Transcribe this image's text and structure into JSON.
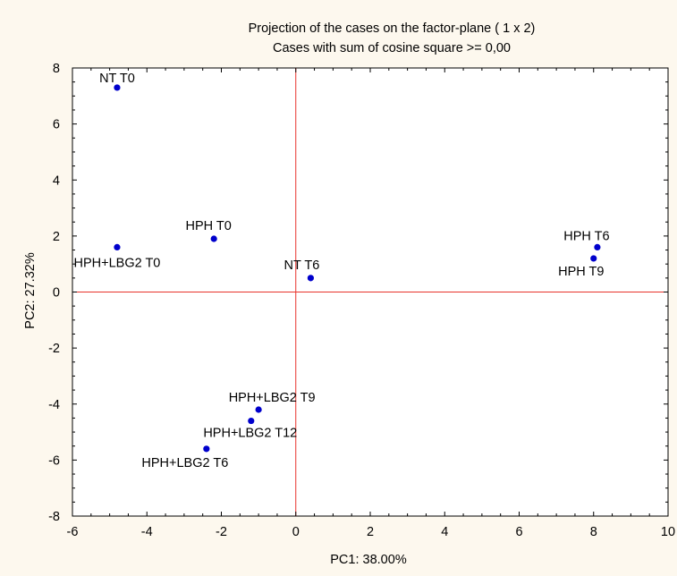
{
  "chart_data": {
    "type": "scatter",
    "title": "Projection of the cases on the factor-plane (  1 x   2)",
    "subtitle": "Cases with sum of cosine square >=  0,00",
    "xlabel": "PC1: 38.00%",
    "ylabel": "PC2: 27.32%",
    "xlim": [
      -6,
      10
    ],
    "ylim": [
      -8,
      8
    ],
    "xticks": [
      "-6",
      "-4",
      "-2",
      "0",
      "2",
      "4",
      "6",
      "8",
      "10"
    ],
    "yticks": [
      "-8",
      "-6",
      "-4",
      "-2",
      "0",
      "2",
      "4",
      "6",
      "8"
    ],
    "grid": false,
    "reference_lines": {
      "x": 0,
      "y": 0,
      "color": "#e8322b"
    },
    "point_color": "#0000cc",
    "points": [
      {
        "label": "NT T0",
        "x": -4.8,
        "y": 7.3
      },
      {
        "label": "HPH T0",
        "x": -2.2,
        "y": 1.9
      },
      {
        "label": "HPH+LBG2 T0",
        "x": -4.8,
        "y": 1.6
      },
      {
        "label": "NT T6",
        "x": 0.4,
        "y": 0.5
      },
      {
        "label": "HPH T6",
        "x": 8.1,
        "y": 1.6
      },
      {
        "label": "HPH T9",
        "x": 8.0,
        "y": 1.2
      },
      {
        "label": "HPH+LBG2 T9",
        "x": -1.0,
        "y": -4.2
      },
      {
        "label": "HPH+LBG2 T12",
        "x": -1.2,
        "y": -4.6
      },
      {
        "label": "HPH+LBG2  T6",
        "x": -2.4,
        "y": -5.6
      }
    ]
  }
}
